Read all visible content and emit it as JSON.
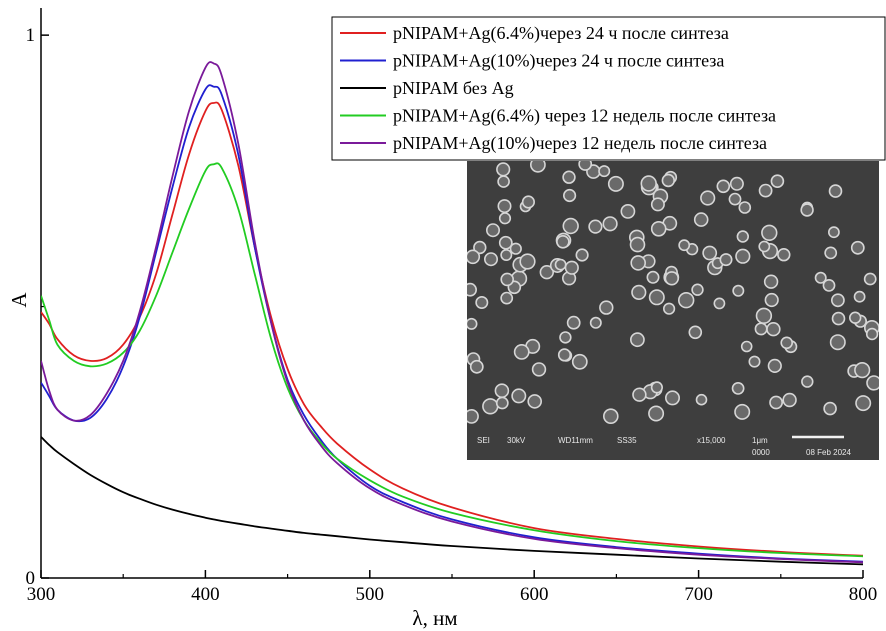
{
  "chart_data": {
    "type": "line",
    "xlabel": "λ, нм",
    "ylabel": "A",
    "xlim": [
      300,
      800
    ],
    "ylim": [
      0,
      1.05
    ],
    "x_ticks": [
      300,
      400,
      500,
      600,
      700,
      800
    ],
    "y_ticks": [
      0,
      1
    ],
    "grid": false,
    "legend_position": "top-right",
    "x": [
      300,
      305,
      310,
      320,
      330,
      340,
      350,
      360,
      370,
      380,
      390,
      400,
      405,
      410,
      420,
      430,
      440,
      450,
      460,
      470,
      480,
      500,
      520,
      550,
      600,
      650,
      700,
      750,
      800
    ],
    "series": [
      {
        "name": "pNIPAM+Ag(6.4%)через 24 ч после синтеза",
        "color": "#e02020",
        "values": [
          0.49,
          0.468,
          0.44,
          0.41,
          0.4,
          0.405,
          0.43,
          0.48,
          0.56,
          0.67,
          0.78,
          0.86,
          0.875,
          0.862,
          0.76,
          0.61,
          0.48,
          0.385,
          0.32,
          0.28,
          0.248,
          0.2,
          0.165,
          0.13,
          0.092,
          0.072,
          0.058,
          0.048,
          0.041
        ]
      },
      {
        "name": "pNIPAM+Ag(10%)через 24 ч после синтеза",
        "color": "#2020d0",
        "values": [
          0.36,
          0.335,
          0.31,
          0.29,
          0.295,
          0.33,
          0.39,
          0.48,
          0.6,
          0.72,
          0.83,
          0.9,
          0.905,
          0.89,
          0.78,
          0.61,
          0.47,
          0.365,
          0.3,
          0.255,
          0.22,
          0.17,
          0.14,
          0.108,
          0.075,
          0.057,
          0.045,
          0.036,
          0.03
        ]
      },
      {
        "name": "pNIPAM без Ag",
        "color": "#000000",
        "values": [
          0.26,
          0.245,
          0.232,
          0.21,
          0.19,
          0.173,
          0.158,
          0.146,
          0.135,
          0.126,
          0.118,
          0.111,
          0.108,
          0.105,
          0.1,
          0.095,
          0.091,
          0.087,
          0.083,
          0.08,
          0.077,
          0.071,
          0.066,
          0.059,
          0.05,
          0.043,
          0.036,
          0.03,
          0.025
        ]
      },
      {
        "name": "pNIPAM+Ag(6.4%) через 12 недель после синтеза",
        "color": "#22cc22",
        "values": [
          0.52,
          0.475,
          0.43,
          0.4,
          0.39,
          0.395,
          0.415,
          0.455,
          0.52,
          0.6,
          0.68,
          0.75,
          0.762,
          0.755,
          0.68,
          0.56,
          0.44,
          0.35,
          0.29,
          0.25,
          0.22,
          0.18,
          0.15,
          0.12,
          0.088,
          0.068,
          0.055,
          0.046,
          0.04
        ]
      },
      {
        "name": "pNIPAM+Ag(10%)через 12 недель после синтеза",
        "color": "#7a1a9a",
        "values": [
          0.4,
          0.345,
          0.31,
          0.29,
          0.3,
          0.34,
          0.4,
          0.49,
          0.61,
          0.74,
          0.86,
          0.94,
          0.948,
          0.925,
          0.8,
          0.62,
          0.47,
          0.36,
          0.29,
          0.245,
          0.212,
          0.165,
          0.135,
          0.104,
          0.072,
          0.055,
          0.043,
          0.035,
          0.029
        ]
      }
    ]
  },
  "inset": {
    "label_sei": "SEI",
    "label_kv": "30kV",
    "label_wd": "WD11mm",
    "label_ss": "SS35",
    "label_mag": "x15,000",
    "label_scale": "1μm",
    "label_num": "0000",
    "label_date": "08 Feb 2024"
  }
}
